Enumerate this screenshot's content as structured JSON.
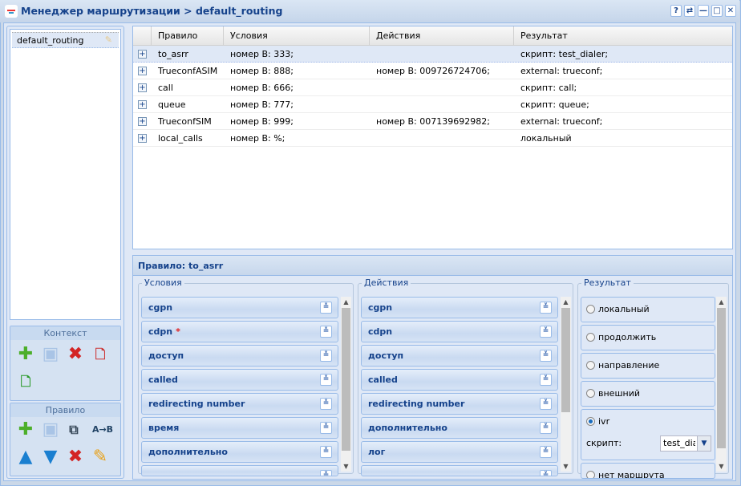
{
  "window": {
    "title": "Менеджер маршрутизации > default_routing",
    "buttons": [
      "?",
      "⇄",
      "—",
      "□",
      "✕"
    ]
  },
  "contexts": [
    "default_routing"
  ],
  "context_tools": {
    "label": "Контекст",
    "icons": [
      "add-icon",
      "save-icon",
      "delete-icon",
      "import-icon",
      "export-icon"
    ]
  },
  "rule_tools": {
    "label": "Правило",
    "icons": [
      "add-icon",
      "save-icon",
      "copy-icon",
      "rename-icon",
      "move-up-icon",
      "move-down-icon",
      "delete-icon",
      "edit-icon"
    ]
  },
  "grid": {
    "columns": [
      "Правило",
      "Условия",
      "Действия",
      "Результат"
    ],
    "rows": [
      {
        "rule": "to_asrr",
        "cond": "номер B: 333;",
        "act": "",
        "res": "скрипт: test_dialer;"
      },
      {
        "rule": "TrueconfASIM",
        "cond": "номер B: 888;",
        "act": "номер B: 009726724706;",
        "res": "external: trueconf;"
      },
      {
        "rule": "call",
        "cond": "номер B: 666;",
        "act": "",
        "res": "скрипт: call;"
      },
      {
        "rule": "queue",
        "cond": "номер B: 777;",
        "act": "",
        "res": "скрипт: queue;"
      },
      {
        "rule": "TrueconfSIM",
        "cond": "номер B: 999;",
        "act": "номер B: 007139692982;",
        "res": "external: trueconf;"
      },
      {
        "rule": "local_calls",
        "cond": "номер B: %;",
        "act": "",
        "res": "локальный"
      }
    ]
  },
  "rule": {
    "title": "Правило: to_asrr",
    "conditions": {
      "legend": "Условия",
      "items": [
        "cgpn",
        "cdpn",
        "доступ",
        "called",
        "redirecting number",
        "время",
        "дополнительно",
        ""
      ],
      "required_mark": "*"
    },
    "actions": {
      "legend": "Действия",
      "items": [
        "cgpn",
        "cdpn",
        "доступ",
        "called",
        "redirecting number",
        "дополнительно",
        "лог",
        ""
      ]
    },
    "result": {
      "legend": "Результат",
      "options": [
        "локальный",
        "продолжить",
        "направление",
        "внешний",
        "ivr",
        "нет маршрута"
      ],
      "selected": "ivr",
      "script_label": "скрипт:",
      "script_value": "test_dialer"
    }
  }
}
